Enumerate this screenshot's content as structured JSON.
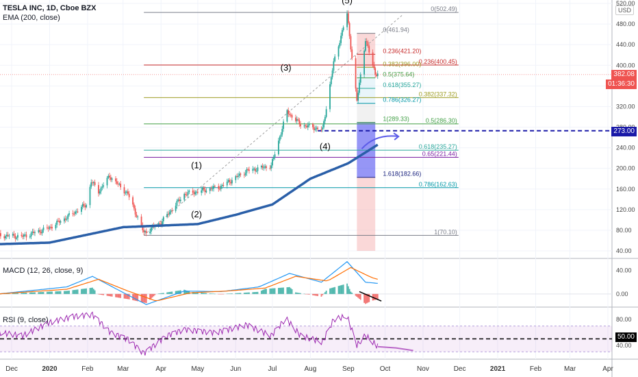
{
  "header": {
    "symbol_line": "TESLA INC, 1D, Cboe BZX",
    "ema_label": "EMA (200, close)"
  },
  "macd": {
    "label": "MACD (12, 26, close, 9)"
  },
  "rsi": {
    "label": "RSI (9, close)"
  },
  "axis": {
    "currency": "USD"
  },
  "price_tags": {
    "last": "382.08",
    "countdown": "01:36:30",
    "target": "273.00",
    "rsi_level": "50.00"
  },
  "waves": [
    {
      "label": "(1)",
      "date": "2020-04-30",
      "price": 200
    },
    {
      "label": "(2)",
      "date": "2020-04-30",
      "price": 105
    },
    {
      "label": "(3)",
      "date": "2020-07-12",
      "price": 390
    },
    {
      "label": "(4)",
      "date": "2020-08-13",
      "price": 237
    },
    {
      "label": "(5)",
      "date": "2020-08-31",
      "price": 520
    }
  ],
  "colors": {
    "ema": "#2a5fa8",
    "up": "#26a69a",
    "down": "#ef5350",
    "macd": "#2196f3",
    "signal": "#ff6d00",
    "rsi": "#9c27b0"
  },
  "chart_data": [
    {
      "type": "candlestick",
      "title": "TESLA INC, 1D, Cboe BZX",
      "ylim": [
        40,
        520
      ],
      "y_ticks": [
        40,
        80,
        120,
        160,
        200,
        240,
        280,
        320,
        360,
        400,
        440,
        480,
        520
      ],
      "x_ticks": [
        "Dec",
        "2020",
        "Feb",
        "Mar",
        "Apr",
        "May",
        "Jun",
        "Jul",
        "Aug",
        "Sep",
        "Oct",
        "Nov",
        "Dec",
        "2021",
        "Feb",
        "Mar",
        "Apr"
      ],
      "x_tick_dates": [
        "2019-12-01",
        "2020-01-01",
        "2020-02-01",
        "2020-03-01",
        "2020-04-01",
        "2020-05-01",
        "2020-06-01",
        "2020-07-01",
        "2020-08-01",
        "2020-09-01",
        "2020-10-01",
        "2020-11-01",
        "2020-12-01",
        "2021-01-01",
        "2021-02-01",
        "2021-03-01",
        "2021-04-01"
      ],
      "close_keypoints": [
        [
          "2019-11-20",
          70
        ],
        [
          "2019-12-10",
          68
        ],
        [
          "2019-12-31",
          84
        ],
        [
          "2020-01-15",
          105
        ],
        [
          "2020-01-31",
          130
        ],
        [
          "2020-02-04",
          175
        ],
        [
          "2020-02-10",
          155
        ],
        [
          "2020-02-19",
          185
        ],
        [
          "2020-03-05",
          150
        ],
        [
          "2020-03-18",
          75
        ],
        [
          "2020-04-01",
          95
        ],
        [
          "2020-04-20",
          150
        ],
        [
          "2020-05-01",
          155
        ],
        [
          "2020-05-20",
          165
        ],
        [
          "2020-06-10",
          195
        ],
        [
          "2020-06-30",
          205
        ],
        [
          "2020-07-13",
          310
        ],
        [
          "2020-07-24",
          285
        ],
        [
          "2020-08-11",
          275
        ],
        [
          "2020-08-20",
          405
        ],
        [
          "2020-08-31",
          500
        ],
        [
          "2020-09-08",
          330
        ],
        [
          "2020-09-15",
          450
        ],
        [
          "2020-09-23",
          385
        ],
        [
          "2020-09-25",
          382
        ]
      ],
      "ema200_keypoints": [
        [
          "2019-11-20",
          53
        ],
        [
          "2020-01-01",
          56
        ],
        [
          "2020-03-01",
          86
        ],
        [
          "2020-05-01",
          92
        ],
        [
          "2020-06-01",
          110
        ],
        [
          "2020-07-01",
          130
        ],
        [
          "2020-08-01",
          180
        ],
        [
          "2020-09-01",
          210
        ],
        [
          "2020-09-25",
          246
        ]
      ],
      "fib_left": {
        "start_date": "2020-03-18",
        "end_date": "2020-11-30",
        "levels": [
          {
            "label": "0(502.49)",
            "value": 502.49
          },
          {
            "label": "0.236(400.45)",
            "value": 400.45
          },
          {
            "label": "0.382(337.32)",
            "value": 337.32
          },
          {
            "label": "0.5(286.30)",
            "value": 286.3
          },
          {
            "label": "0.618(235.27)",
            "value": 235.27
          },
          {
            "label": "0.65(221.44)",
            "value": 221.44
          },
          {
            "label": "0.786(162.63)",
            "value": 162.63
          },
          {
            "label": "1(70.10)",
            "value": 70.1
          }
        ]
      },
      "fib_right": {
        "start_date": "2020-09-08",
        "end_date": "2020-09-23",
        "levels": [
          {
            "label": "0(461.94)",
            "value": 461.94
          },
          {
            "label": "0.236(421.20)",
            "value": 421.2
          },
          {
            "label": "0.382(396.00)",
            "value": 396.0
          },
          {
            "label": "0.5(375.64)",
            "value": 375.64
          },
          {
            "label": "0.618(355.27)",
            "value": 355.27
          },
          {
            "label": "0.786(326.27)",
            "value": 326.27
          },
          {
            "label": "1(289.33)",
            "value": 289.33
          },
          {
            "label": "1.618(182.66)",
            "value": 182.66
          }
        ]
      },
      "target_level": 273.0,
      "last_price": 382.08
    },
    {
      "type": "line",
      "title": "MACD (12, 26, close, 9)",
      "ylim": [
        -20,
        50
      ],
      "y_ticks": [
        0,
        40
      ],
      "macd_keypoints": [
        [
          "2019-11-20",
          0
        ],
        [
          "2020-01-15",
          12
        ],
        [
          "2020-02-05",
          30
        ],
        [
          "2020-02-25",
          8
        ],
        [
          "2020-03-20",
          -18
        ],
        [
          "2020-04-20",
          5
        ],
        [
          "2020-05-20",
          4
        ],
        [
          "2020-06-20",
          12
        ],
        [
          "2020-07-15",
          35
        ],
        [
          "2020-08-10",
          20
        ],
        [
          "2020-08-31",
          55
        ],
        [
          "2020-09-15",
          20
        ],
        [
          "2020-09-25",
          18
        ]
      ],
      "signal_keypoints": [
        [
          "2019-11-20",
          0
        ],
        [
          "2020-01-15",
          8
        ],
        [
          "2020-02-10",
          25
        ],
        [
          "2020-03-05",
          5
        ],
        [
          "2020-03-28",
          -12
        ],
        [
          "2020-04-25",
          2
        ],
        [
          "2020-05-25",
          5
        ],
        [
          "2020-06-25",
          10
        ],
        [
          "2020-07-20",
          30
        ],
        [
          "2020-08-15",
          22
        ],
        [
          "2020-09-03",
          45
        ],
        [
          "2020-09-20",
          28
        ],
        [
          "2020-09-25",
          25
        ]
      ]
    },
    {
      "type": "line",
      "title": "RSI (9, close)",
      "ylim": [
        25,
        95
      ],
      "y_ticks": [
        40,
        50,
        80
      ],
      "band": [
        30,
        70
      ],
      "rsi_keypoints": [
        [
          "2019-11-20",
          60
        ],
        [
          "2019-12-10",
          55
        ],
        [
          "2019-12-31",
          75
        ],
        [
          "2020-01-20",
          85
        ],
        [
          "2020-02-05",
          88
        ],
        [
          "2020-02-20",
          60
        ],
        [
          "2020-03-05",
          50
        ],
        [
          "2020-03-18",
          28
        ],
        [
          "2020-04-05",
          55
        ],
        [
          "2020-04-20",
          65
        ],
        [
          "2020-05-15",
          60
        ],
        [
          "2020-06-10",
          72
        ],
        [
          "2020-06-30",
          55
        ],
        [
          "2020-07-12",
          82
        ],
        [
          "2020-07-24",
          55
        ],
        [
          "2020-08-11",
          45
        ],
        [
          "2020-08-20",
          80
        ],
        [
          "2020-08-31",
          85
        ],
        [
          "2020-09-08",
          40
        ],
        [
          "2020-09-15",
          55
        ],
        [
          "2020-09-25",
          38
        ]
      ],
      "rsi_projection": [
        [
          "2020-09-25",
          38
        ],
        [
          "2020-10-10",
          36
        ],
        [
          "2020-10-24",
          32
        ]
      ]
    }
  ]
}
